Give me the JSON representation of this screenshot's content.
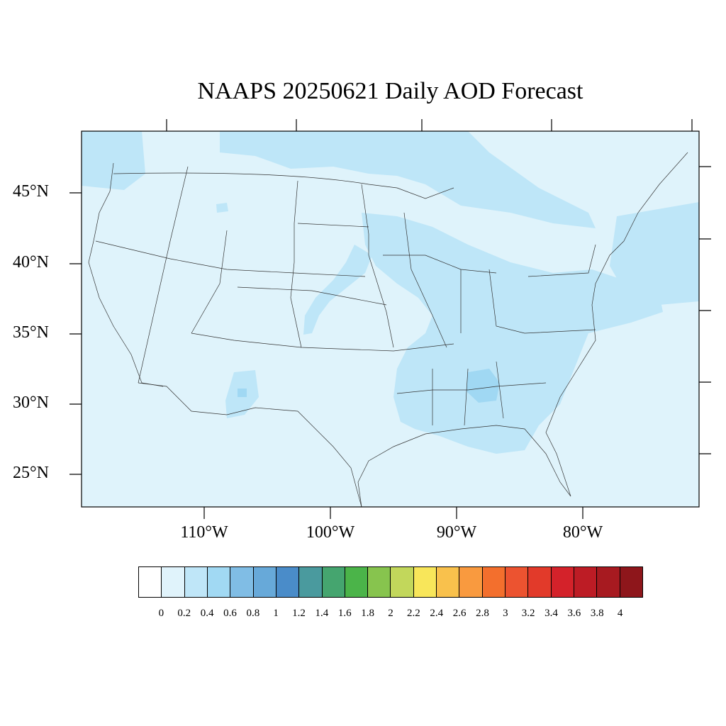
{
  "title": "NAAPS 20250621 Daily AOD Forecast",
  "map": {
    "projection": "lambert-like conic",
    "lat_labels": [
      "45°N",
      "40°N",
      "35°N",
      "30°N",
      "25°N"
    ],
    "lon_labels": [
      "110°W",
      "100°W",
      "90°W",
      "80°W"
    ],
    "background_aod_color": "#dff3fb",
    "colors": {
      "level_0_2": "#dff3fb",
      "level_0_4": "#bee6f8",
      "level_0_6": "#a0d8f3"
    }
  },
  "colorbar": {
    "colors": [
      "#ffffff",
      "#e0f3fb",
      "#bfe6f8",
      "#a1d9f3",
      "#80bde5",
      "#67a9d9",
      "#4a8cc9",
      "#4a9a9e",
      "#45a56f",
      "#4bb449",
      "#87c44e",
      "#c2d75b",
      "#f8e65a",
      "#f9c14c",
      "#f99a3f",
      "#f36f2d",
      "#ec5330",
      "#e23a2a",
      "#d4222a",
      "#bd1c25",
      "#a71a20",
      "#8e161b"
    ],
    "labels": [
      "0",
      "0.2",
      "0.4",
      "0.6",
      "0.8",
      "1",
      "1.2",
      "1.4",
      "1.6",
      "1.8",
      "2",
      "2.2",
      "2.4",
      "2.6",
      "2.8",
      "3",
      "3.2",
      "3.4",
      "3.6",
      "3.8",
      "4"
    ]
  }
}
